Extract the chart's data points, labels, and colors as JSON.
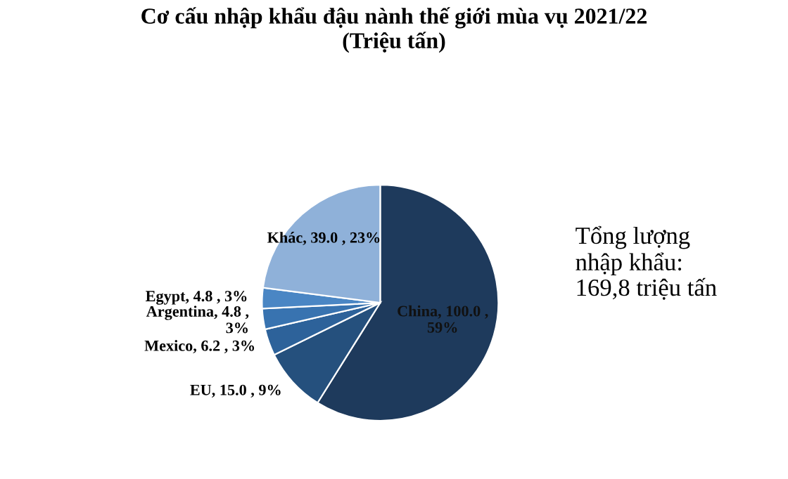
{
  "chart_data": {
    "type": "pie",
    "title": "Cơ cấu nhập khẩu đậu nành thế giới mùa vụ 2021/22\n(Triệu tấn)",
    "categories": [
      "China",
      "EU",
      "Mexico",
      "Argentina",
      "Egypt",
      "Khác"
    ],
    "values": [
      100.0,
      15.0,
      6.2,
      4.8,
      4.8,
      39.0
    ],
    "value_labels": [
      "100.0 ,\n59%",
      "15.0 , 9%",
      "6.2 , 3%",
      "4.8 ,\n3%",
      "4.8 , 3%",
      "39.0 , 23%"
    ],
    "colors": [
      "#1e3a5c",
      "#25507d",
      "#2d629a",
      "#3873b0",
      "#4a86c4",
      "#8fb1d9"
    ],
    "annotations": [
      "Tổng lượng\nnhập khẩu:\n169,8 triệu tấn"
    ],
    "legend": false
  }
}
